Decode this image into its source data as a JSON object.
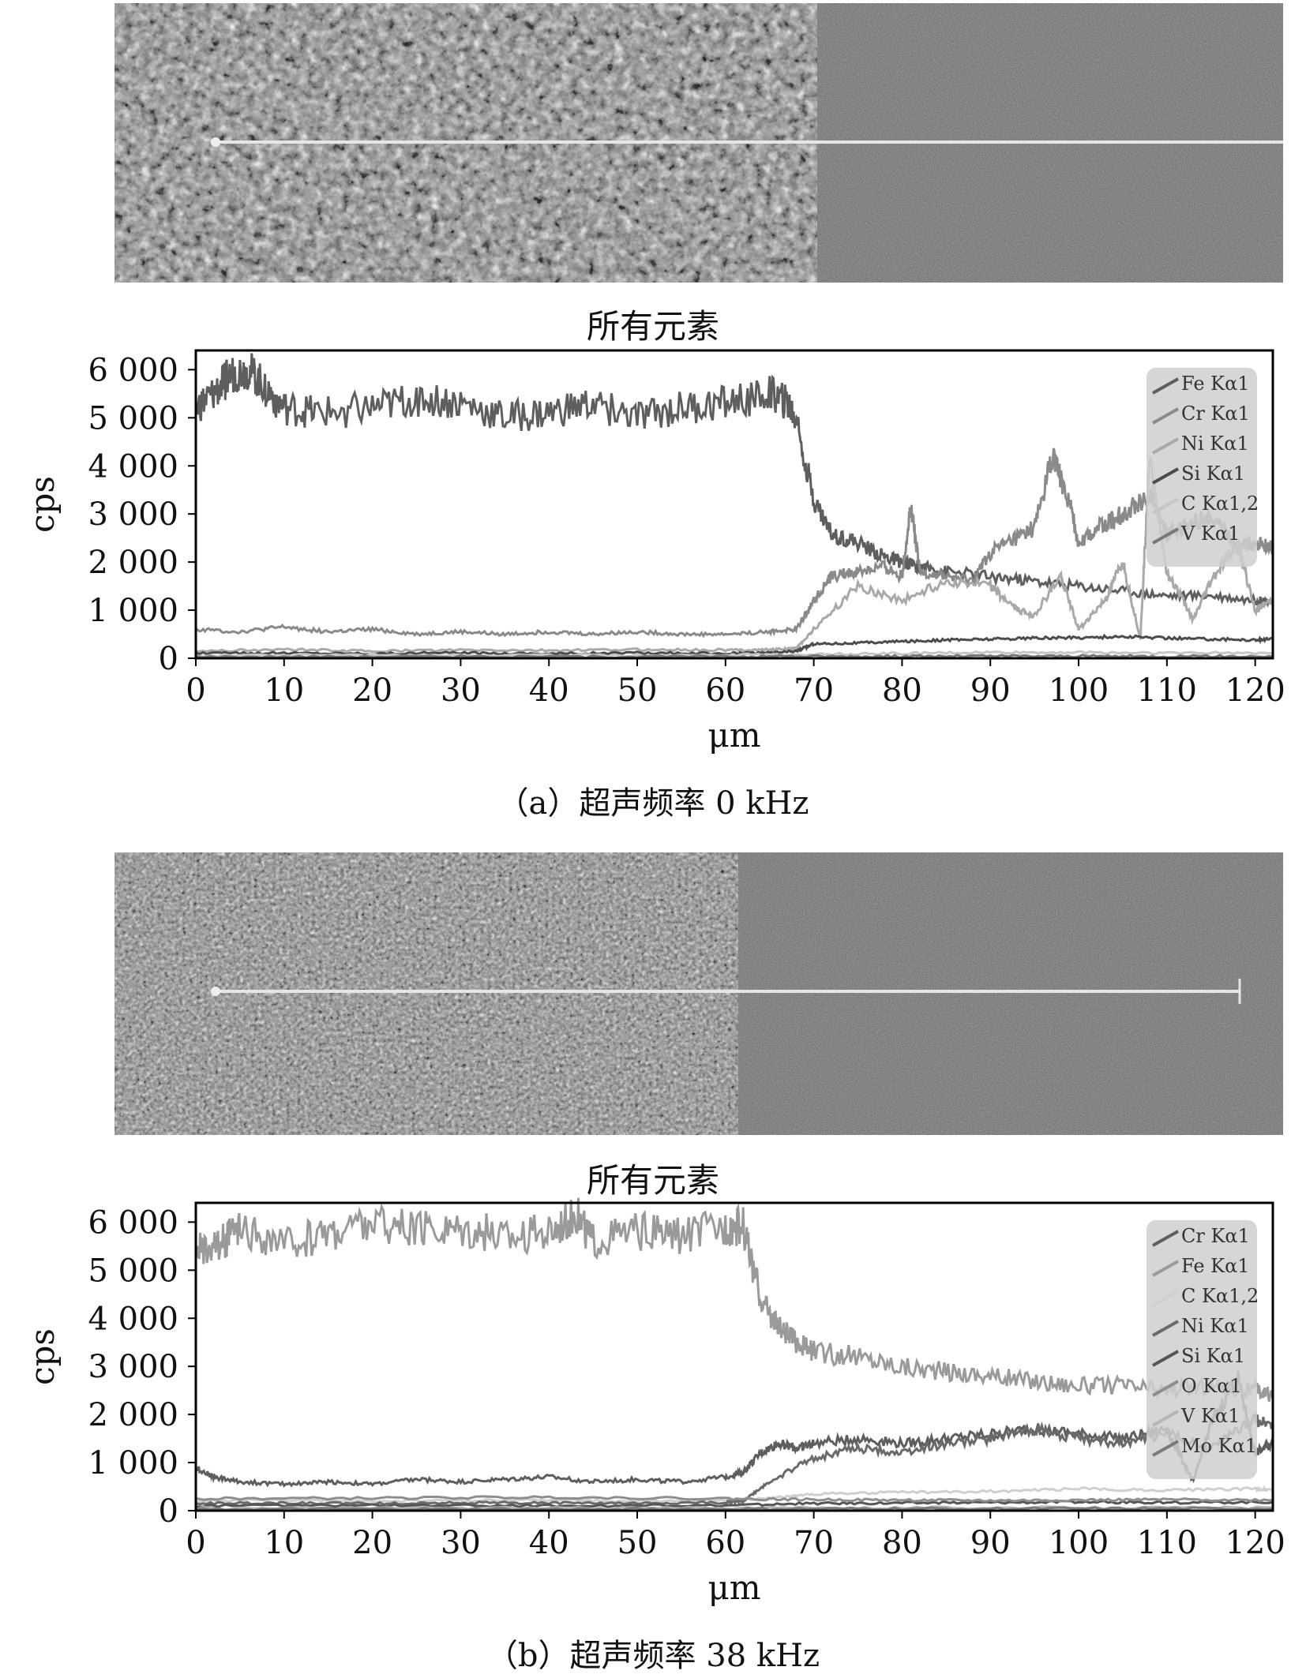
{
  "panels": [
    {
      "caption": "（a）超声频率 0 kHz",
      "sem_image": {
        "description_icon": "sem-micrograph",
        "left_region": "coarse-textured",
        "right_region": "smooth",
        "interface_fraction": 0.6,
        "scan_line": true
      }
    },
    {
      "caption": "（b）超声频率 38 kHz",
      "sem_image": {
        "description_icon": "sem-micrograph",
        "left_region": "fine-textured",
        "right_region": "smooth",
        "interface_fraction": 0.53,
        "scan_line": true
      }
    }
  ],
  "chart_data": [
    {
      "type": "line",
      "title": "所有元素",
      "xlabel": "μm",
      "ylabel": "cps",
      "xlim": [
        0,
        122
      ],
      "ylim": [
        0,
        6400
      ],
      "xticks": [
        0,
        10,
        20,
        30,
        40,
        50,
        60,
        70,
        80,
        90,
        100,
        110,
        120
      ],
      "xtick_labels": [
        "0",
        "10",
        "20",
        "30",
        "40",
        "50",
        "60",
        "70",
        "80",
        "90",
        "100",
        "110",
        "120"
      ],
      "yticks": [
        0,
        1000,
        2000,
        3000,
        4000,
        5000,
        6000
      ],
      "ytick_labels": [
        "0",
        "1 000",
        "2 000",
        "3 000",
        "4 000",
        "5 000",
        "6 000"
      ],
      "grid": false,
      "legend_position": "top-right",
      "series": [
        {
          "name": "Fe Kα1",
          "color": "#5e5e5e",
          "x": [
            0,
            2,
            4,
            6,
            8,
            10,
            14,
            20,
            25,
            30,
            35,
            40,
            45,
            50,
            55,
            60,
            65,
            67,
            68,
            70,
            72,
            75,
            78,
            80,
            82,
            85,
            90,
            95,
            100,
            105,
            110,
            115,
            120,
            122
          ],
          "y": [
            5200,
            5500,
            5900,
            6000,
            5600,
            5200,
            5100,
            5200,
            5400,
            5300,
            5000,
            5100,
            5300,
            5000,
            5200,
            5300,
            5500,
            5300,
            5000,
            3300,
            2600,
            2400,
            2100,
            2000,
            1900,
            1800,
            1700,
            1600,
            1500,
            1400,
            1300,
            1300,
            1200,
            1200
          ]
        },
        {
          "name": "Cr Kα1",
          "color": "#8a8a8a",
          "x": [
            0,
            5,
            10,
            15,
            20,
            25,
            30,
            35,
            40,
            45,
            50,
            55,
            60,
            65,
            68,
            70,
            72,
            75,
            78,
            80,
            81,
            82,
            85,
            88,
            90,
            93,
            95,
            97,
            99,
            100,
            103,
            105,
            108,
            110,
            113,
            115,
            118,
            120,
            122
          ],
          "y": [
            600,
            550,
            650,
            550,
            600,
            500,
            550,
            500,
            550,
            500,
            550,
            500,
            500,
            550,
            600,
            1200,
            1700,
            1800,
            1900,
            1700,
            3200,
            1800,
            1700,
            1600,
            2200,
            2500,
            2700,
            4200,
            3200,
            2400,
            2800,
            3000,
            3400,
            2600,
            2800,
            3000,
            2300,
            2400,
            2300
          ]
        },
        {
          "name": "Ni Kα1",
          "color": "#a9a9a9",
          "x": [
            0,
            10,
            20,
            30,
            40,
            50,
            60,
            65,
            68,
            70,
            75,
            80,
            85,
            90,
            93,
            95,
            98,
            100,
            103,
            105,
            107,
            108,
            110,
            113,
            115,
            118,
            120,
            122
          ],
          "y": [
            150,
            180,
            150,
            170,
            160,
            180,
            170,
            180,
            200,
            600,
            1500,
            1200,
            1600,
            1500,
            1000,
            900,
            1700,
            600,
            1200,
            2000,
            400,
            4200,
            1800,
            800,
            1600,
            2400,
            1000,
            1200
          ]
        },
        {
          "name": "Si Kα1",
          "color": "#4c4c4c",
          "x": [
            0,
            10,
            20,
            30,
            40,
            50,
            60,
            65,
            68,
            70,
            75,
            80,
            85,
            90,
            95,
            100,
            105,
            110,
            115,
            120,
            122
          ],
          "y": [
            100,
            110,
            100,
            110,
            100,
            110,
            100,
            110,
            150,
            300,
            320,
            350,
            380,
            400,
            420,
            430,
            450,
            420,
            400,
            380,
            400
          ]
        },
        {
          "name": "C Kα1,2",
          "color": "#c6c6c6",
          "x": [
            0,
            20,
            40,
            60,
            70,
            80,
            90,
            100,
            110,
            122
          ],
          "y": [
            60,
            70,
            60,
            70,
            80,
            100,
            120,
            120,
            110,
            110
          ]
        },
        {
          "name": "V Kα1",
          "color": "#787878",
          "x": [
            0,
            20,
            40,
            60,
            70,
            80,
            90,
            100,
            110,
            122
          ],
          "y": [
            30,
            35,
            30,
            35,
            40,
            40,
            45,
            45,
            40,
            40
          ]
        }
      ]
    },
    {
      "type": "line",
      "title": "所有元素",
      "xlabel": "μm",
      "ylabel": "cps",
      "xlim": [
        0,
        122
      ],
      "ylim": [
        0,
        6400
      ],
      "xticks": [
        0,
        10,
        20,
        30,
        40,
        50,
        60,
        70,
        80,
        90,
        100,
        110,
        120
      ],
      "xtick_labels": [
        "0",
        "10",
        "20",
        "30",
        "40",
        "50",
        "60",
        "70",
        "80",
        "90",
        "100",
        "110",
        "120"
      ],
      "yticks": [
        0,
        1000,
        2000,
        3000,
        4000,
        5000,
        6000
      ],
      "ytick_labels": [
        "0",
        "1 000",
        "2 000",
        "3 000",
        "4 000",
        "5 000",
        "6 000"
      ],
      "grid": false,
      "legend_position": "top-right",
      "series": [
        {
          "name": "Cr Kα1",
          "color": "#5e5e5e",
          "x": [
            0,
            2,
            5,
            10,
            15,
            20,
            25,
            30,
            35,
            40,
            45,
            50,
            55,
            60,
            62,
            64,
            66,
            68,
            70,
            75,
            80,
            85,
            90,
            95,
            100,
            105,
            110,
            113,
            115,
            118,
            120,
            122
          ],
          "y": [
            900,
            700,
            600,
            550,
            600,
            550,
            650,
            600,
            650,
            700,
            600,
            650,
            600,
            700,
            800,
            1200,
            1400,
            1300,
            1400,
            1500,
            1400,
            1500,
            1600,
            1700,
            1600,
            1500,
            1700,
            600,
            1800,
            2800,
            1200,
            1400
          ]
        },
        {
          "name": "Fe Kα1",
          "color": "#9a9a9a",
          "x": [
            0,
            3,
            5,
            10,
            15,
            20,
            25,
            30,
            35,
            40,
            43,
            45,
            50,
            55,
            60,
            62,
            64,
            66,
            68,
            70,
            75,
            80,
            85,
            90,
            95,
            100,
            105,
            110,
            115,
            120,
            122
          ],
          "y": [
            5400,
            5600,
            5800,
            5500,
            5800,
            6000,
            5800,
            5900,
            5700,
            5800,
            6200,
            5600,
            5800,
            5700,
            5900,
            5900,
            4400,
            3800,
            3500,
            3300,
            3200,
            3000,
            2900,
            2800,
            2700,
            2600,
            2600,
            2500,
            2600,
            2500,
            2400
          ]
        },
        {
          "name": "C Kα1,2",
          "color": "#cfcfcf",
          "x": [
            0,
            10,
            20,
            30,
            40,
            50,
            60,
            65,
            70,
            80,
            90,
            100,
            110,
            120,
            122
          ],
          "y": [
            200,
            220,
            200,
            210,
            220,
            200,
            220,
            250,
            350,
            380,
            400,
            450,
            430,
            450,
            440
          ]
        },
        {
          "name": "Ni Kα1",
          "color": "#6a6a6a",
          "x": [
            0,
            10,
            20,
            30,
            40,
            50,
            60,
            62,
            65,
            70,
            75,
            80,
            85,
            90,
            95,
            100,
            105,
            110,
            115,
            120,
            122
          ],
          "y": [
            150,
            160,
            150,
            170,
            160,
            150,
            170,
            200,
            600,
            1100,
            1300,
            1200,
            1400,
            1500,
            1700,
            1500,
            1400,
            1600,
            1300,
            1900,
            1800
          ]
        },
        {
          "name": "Si Kα1",
          "color": "#555555",
          "x": [
            0,
            20,
            40,
            60,
            70,
            80,
            90,
            100,
            110,
            122
          ],
          "y": [
            100,
            110,
            100,
            110,
            150,
            160,
            170,
            180,
            170,
            180
          ]
        },
        {
          "name": "O Kα1",
          "color": "#8e8e8e",
          "x": [
            0,
            20,
            40,
            60,
            70,
            80,
            90,
            100,
            110,
            122
          ],
          "y": [
            250,
            260,
            280,
            250,
            230,
            220,
            210,
            220,
            230,
            220
          ]
        },
        {
          "name": "V Kα1",
          "color": "#b5b5b5",
          "x": [
            0,
            20,
            40,
            60,
            80,
            100,
            122
          ],
          "y": [
            50,
            55,
            50,
            55,
            60,
            60,
            60
          ]
        },
        {
          "name": "Mo Kα1",
          "color": "#7a7a7a",
          "x": [
            0,
            20,
            40,
            60,
            80,
            100,
            122
          ],
          "y": [
            30,
            35,
            30,
            35,
            40,
            40,
            40
          ]
        }
      ]
    }
  ]
}
